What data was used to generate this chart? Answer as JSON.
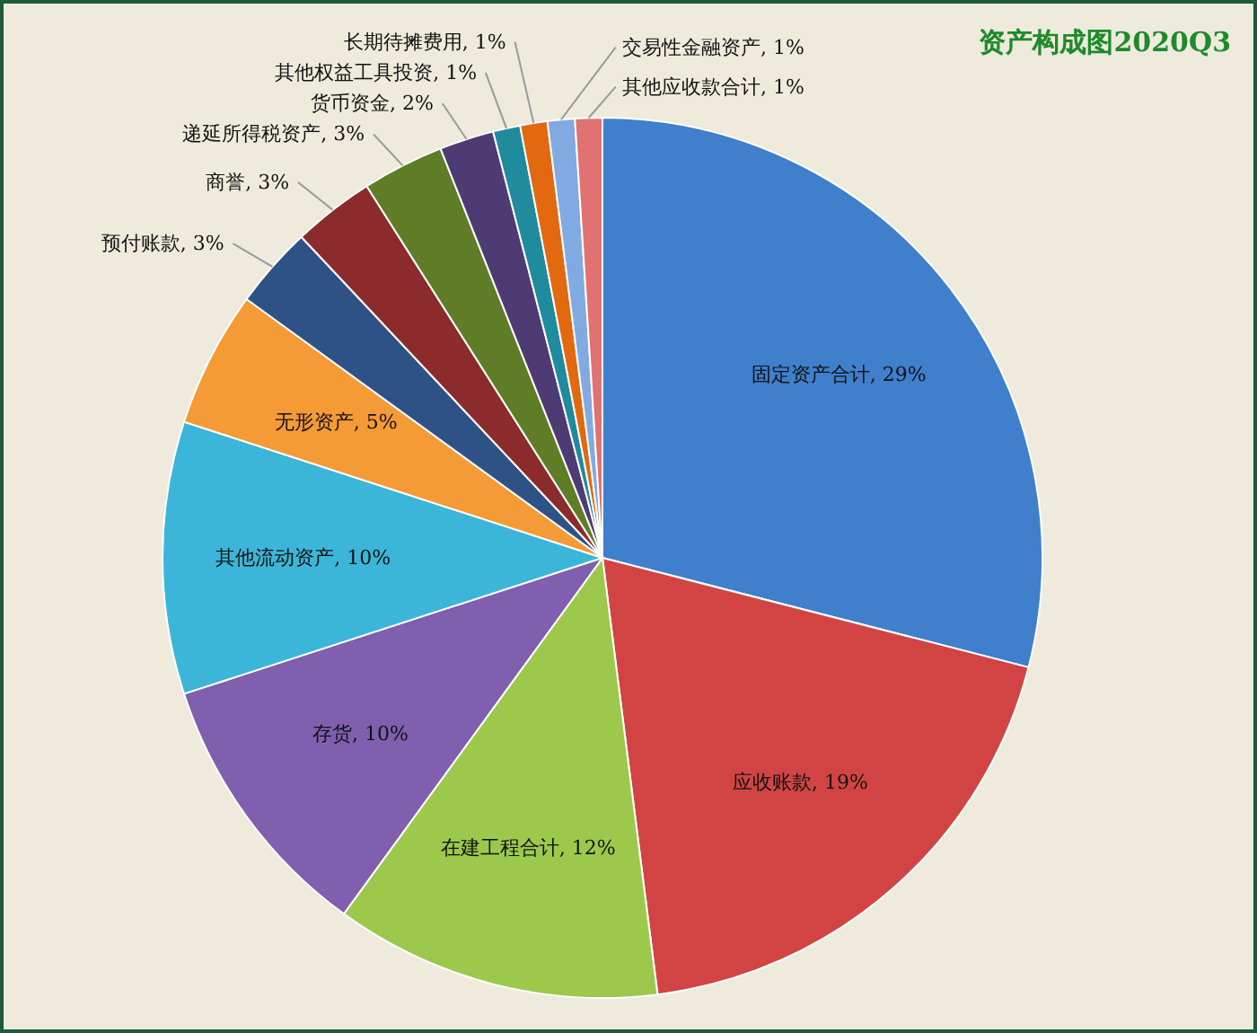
{
  "chart_data": {
    "type": "pie",
    "title": "资产构成图2020Q3",
    "categories": [
      "固定资产合计",
      "应收账款",
      "在建工程合计",
      "存货",
      "其他流动资产",
      "无形资产",
      "预付账款",
      "商誉",
      "递延所得税资产",
      "货币资金",
      "其他权益工具投资",
      "长期待摊费用",
      "交易性金融资产",
      "其他应收款合计"
    ],
    "values": [
      29,
      19,
      12,
      10,
      10,
      5,
      3,
      3,
      3,
      2,
      1,
      1,
      1,
      1
    ],
    "value_labels": [
      "29%",
      "19%",
      "12%",
      "10%",
      "10%",
      "5%",
      "3%",
      "3%",
      "3%",
      "2%",
      "1%",
      "1%",
      "1%",
      "1%"
    ],
    "colors": [
      "#3f7fcc",
      "#d24444",
      "#9cc94c",
      "#7f5fae",
      "#3cb6d8",
      "#f49a36",
      "#2e5186",
      "#8c2b2b",
      "#5f7c26",
      "#4f3b74",
      "#1f8b9d",
      "#e2690f",
      "#82aae2",
      "#e07272"
    ]
  }
}
